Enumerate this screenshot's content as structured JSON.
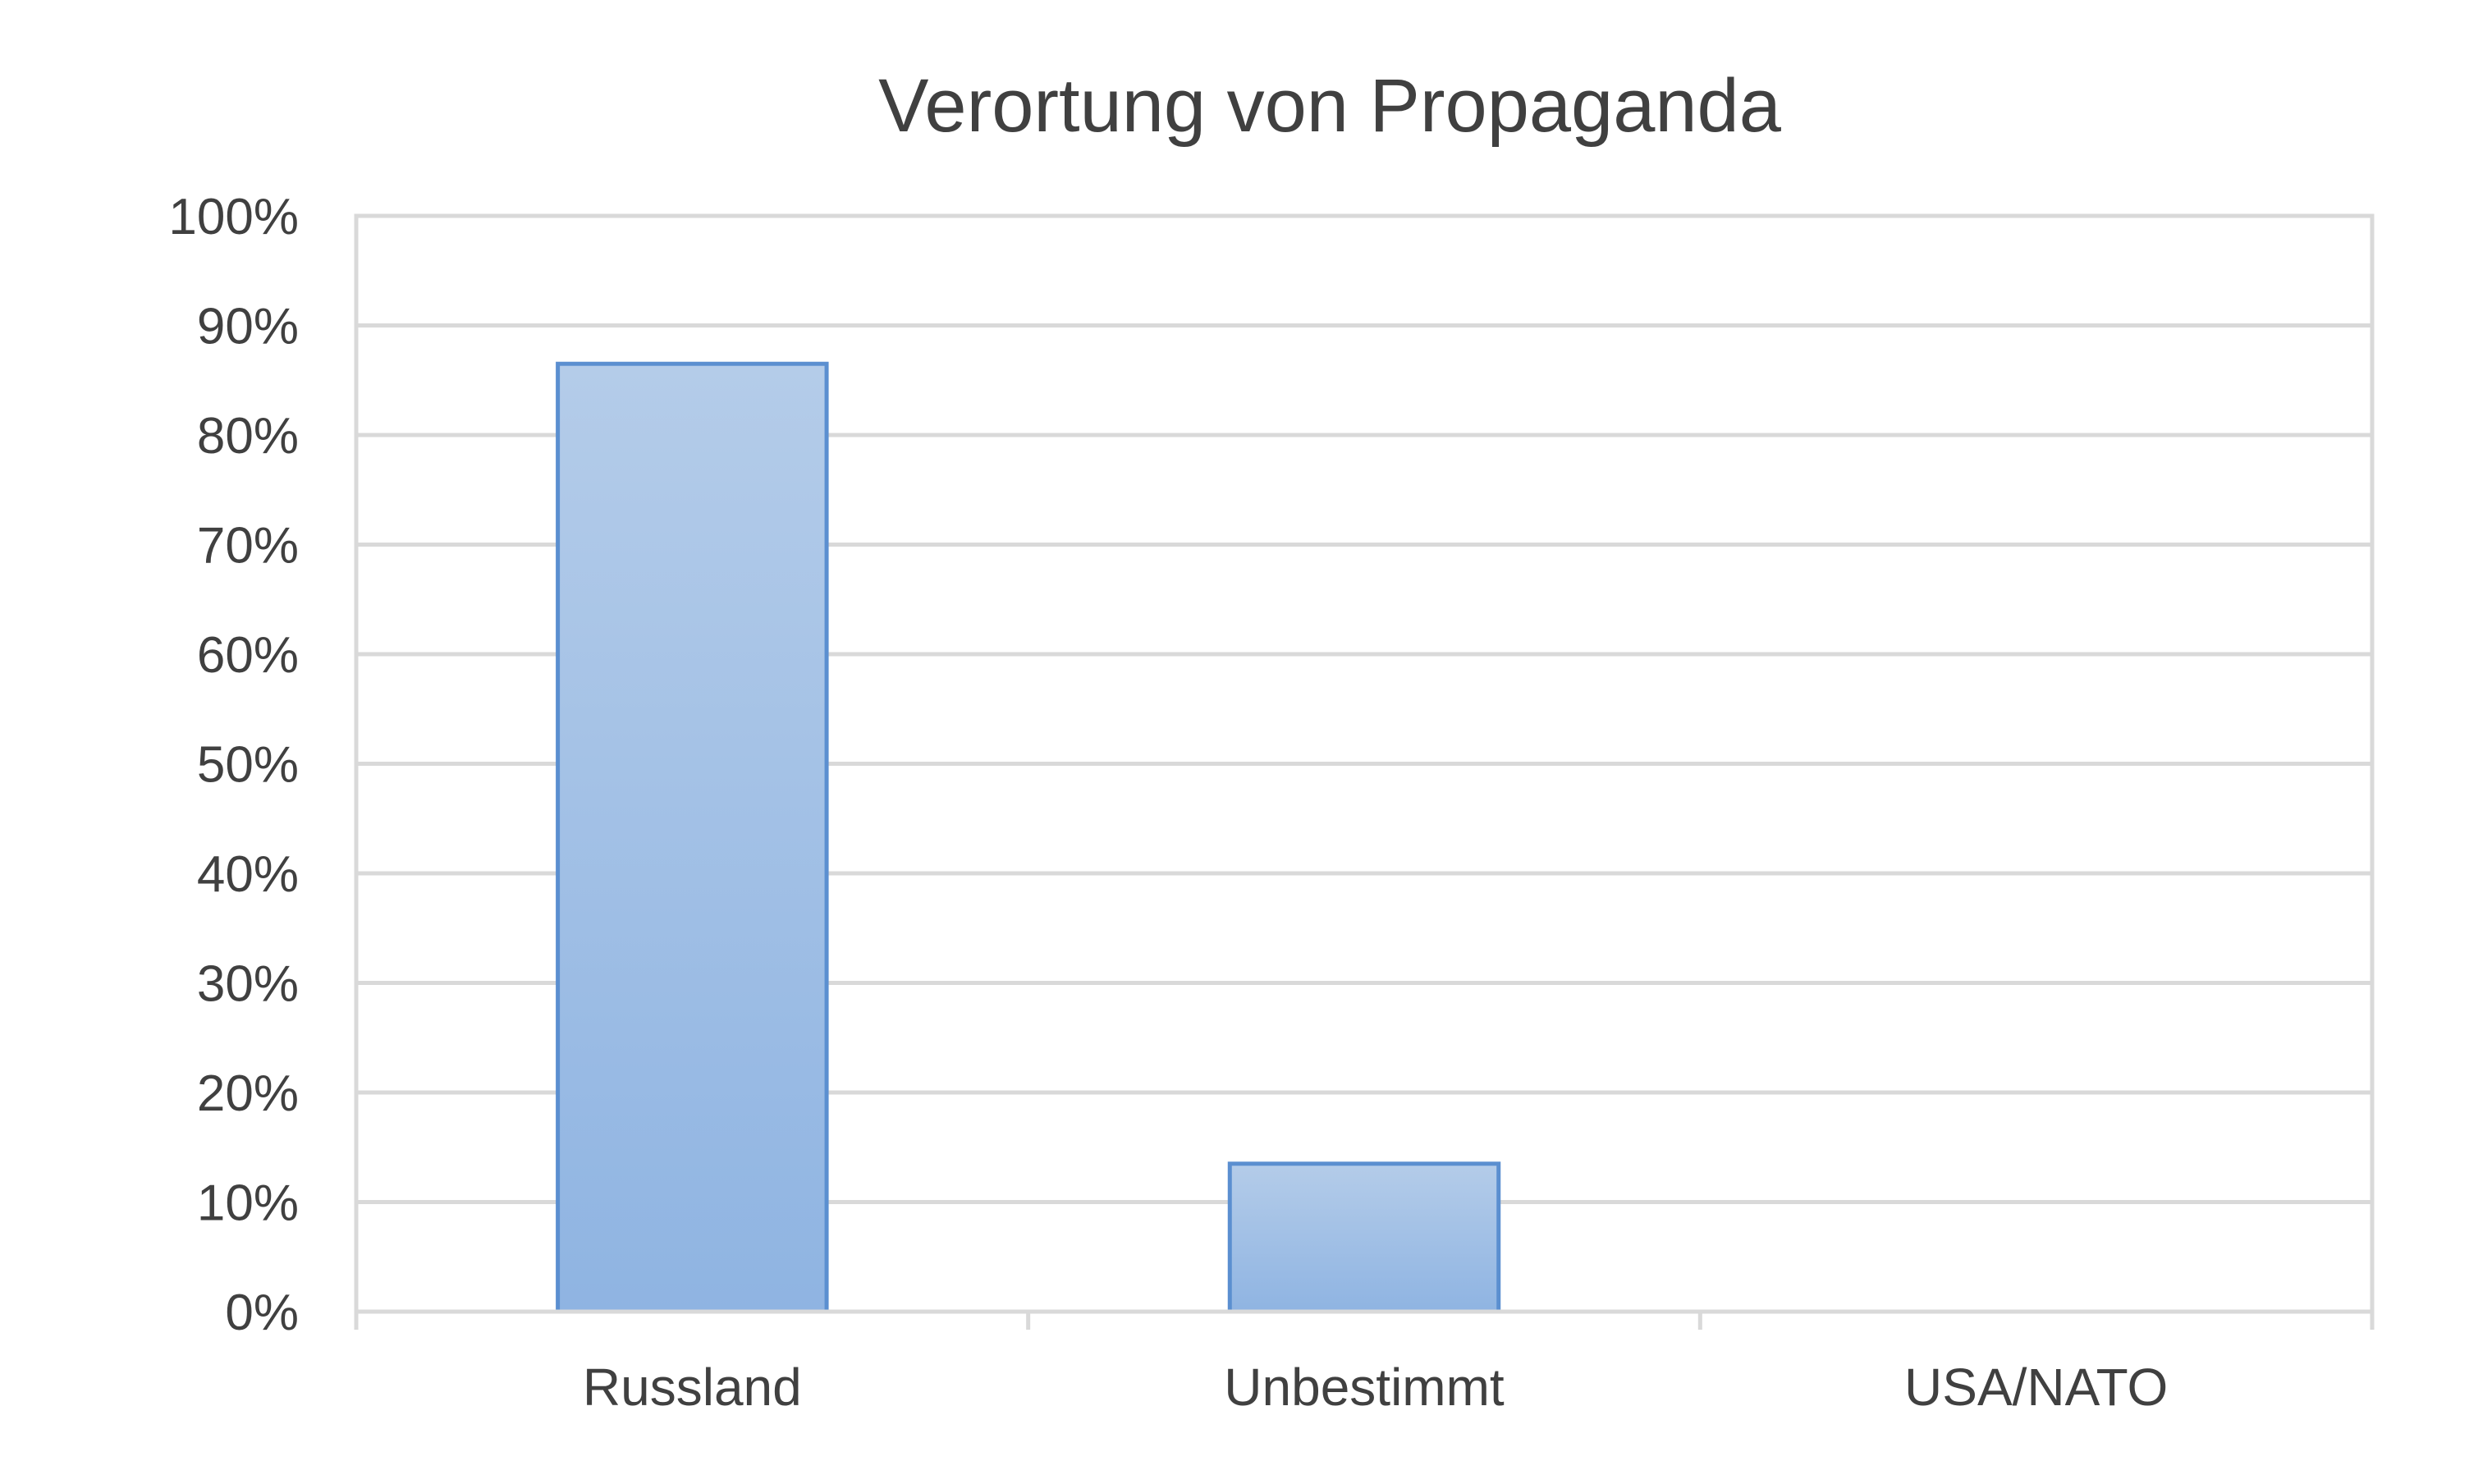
{
  "chart_data": {
    "type": "bar",
    "title": "Verortung von Propaganda",
    "categories": [
      "Russland",
      "Unbestimmt",
      "USA/NATO"
    ],
    "values": [
      86.5,
      13.5,
      0
    ],
    "unit": "%",
    "ylim": [
      0,
      100
    ],
    "yticks": [
      "0%",
      "10%",
      "20%",
      "30%",
      "40%",
      "50%",
      "60%",
      "70%",
      "80%",
      "90%",
      "100%"
    ],
    "xlabel": "",
    "ylabel": "",
    "grid": true,
    "legend": "none",
    "colors": {
      "bar_top": "#b4cce9",
      "bar_bottom": "#8fb4e2",
      "bar_border": "#5b8fd0",
      "grid": "#d9d9d9",
      "text": "#404040"
    }
  }
}
